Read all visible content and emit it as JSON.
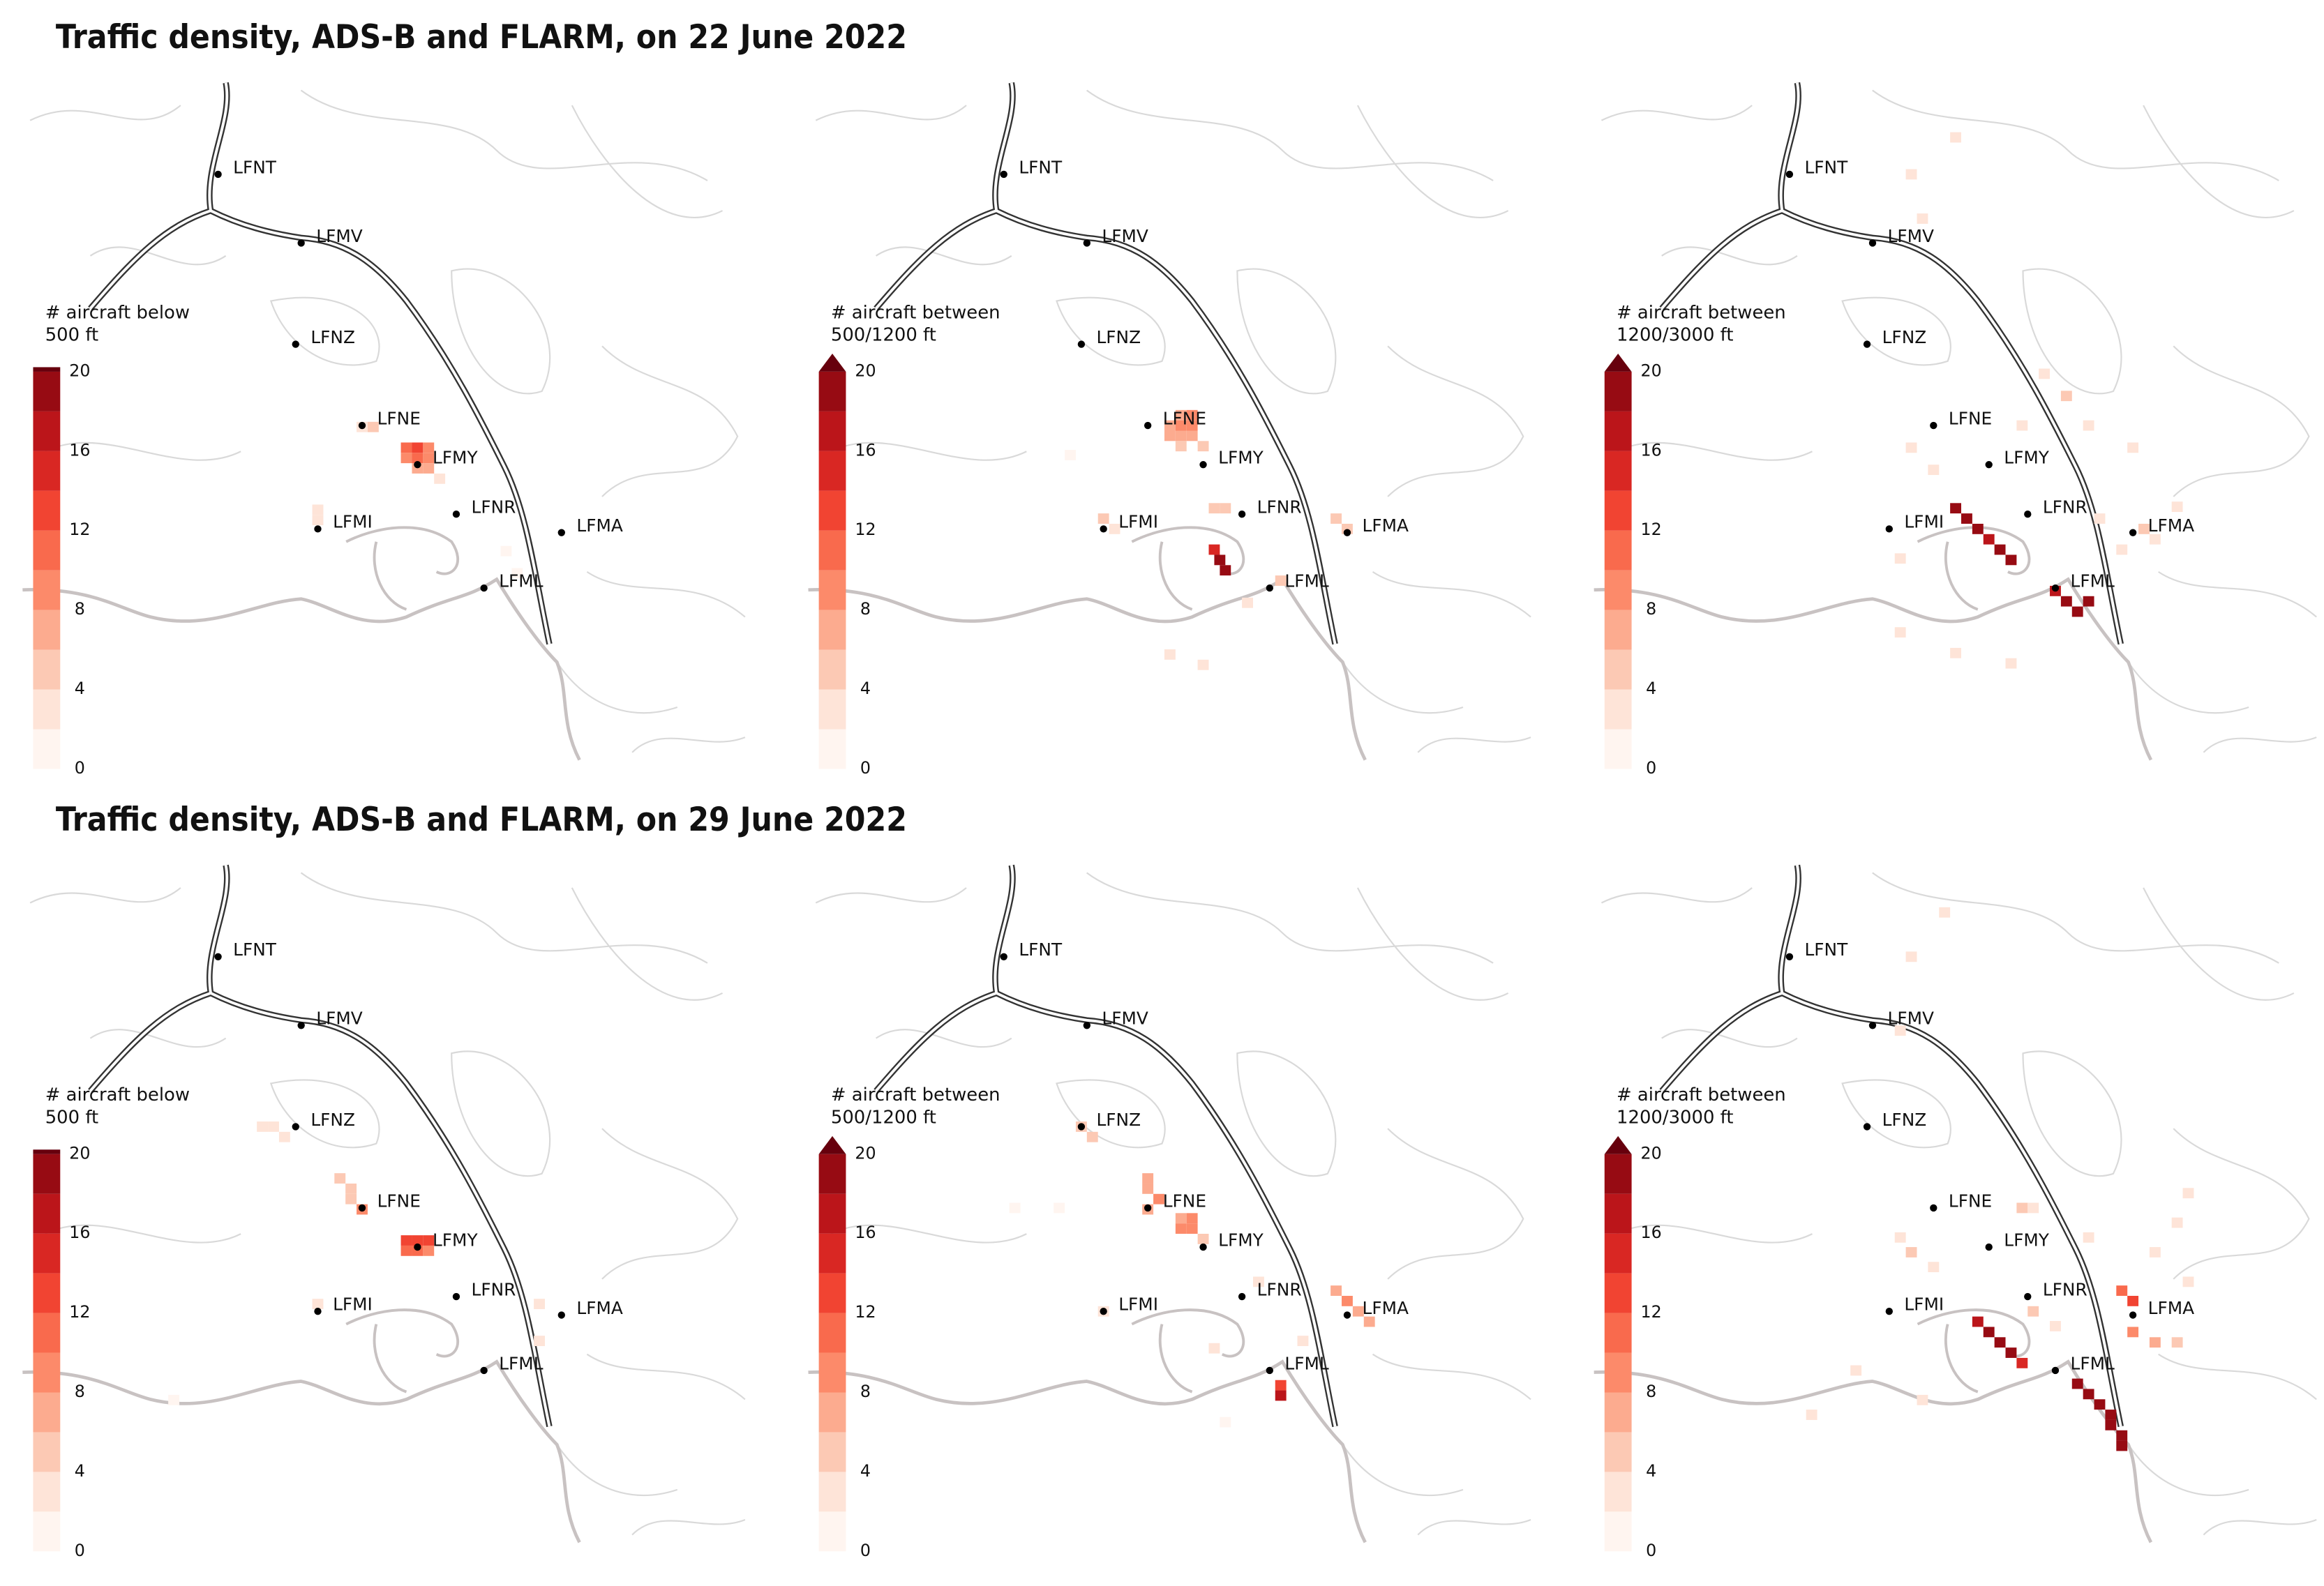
{
  "figure_titles": [
    "Traffic density, ADS-B and FLARM, on 22 June 2022",
    "Traffic density, ADS-B and FLARM, on 29 June 2022"
  ],
  "airports": [
    {
      "code": "LFNT",
      "lon": 4.75,
      "lat": 44.0
    },
    {
      "code": "LFMV",
      "lon": 4.9,
      "lat": 43.907
    },
    {
      "code": "LFNZ",
      "lon": 4.89,
      "lat": 43.77
    },
    {
      "code": "LFNE",
      "lon": 5.01,
      "lat": 43.66
    },
    {
      "code": "LFMY",
      "lon": 5.11,
      "lat": 43.607
    },
    {
      "code": "LFMI",
      "lon": 4.93,
      "lat": 43.52
    },
    {
      "code": "LFNR",
      "lon": 5.18,
      "lat": 43.54
    },
    {
      "code": "LFMA",
      "lon": 5.37,
      "lat": 43.515
    },
    {
      "code": "LFML",
      "lon": 5.23,
      "lat": 43.44
    }
  ],
  "chart_data": [
    {
      "type": "heatmap",
      "xlim": [
        4.397,
        5.715
      ],
      "ylim": [
        43.187,
        44.13
      ],
      "colorbar_label": [
        "# aircraft below",
        "500 ft"
      ],
      "clim": [
        0,
        20
      ],
      "cticks": [
        0,
        4,
        8,
        12,
        16,
        20
      ],
      "extend": "neither",
      "colors": [
        "#fff5f0",
        "#fee4d8",
        "#fcc9b4",
        "#fcab8f",
        "#fc8a6a",
        "#f96a4d",
        "#f14432",
        "#d92723",
        "#bb151a",
        "#970b13"
      ],
      "extend_color": "#67000d",
      "cells": [
        [
          5.09,
          43.63,
          10
        ],
        [
          5.11,
          43.63,
          12
        ],
        [
          5.13,
          43.63,
          8
        ],
        [
          5.09,
          43.616,
          8
        ],
        [
          5.11,
          43.616,
          11
        ],
        [
          5.13,
          43.616,
          9
        ],
        [
          5.11,
          43.602,
          7
        ],
        [
          5.13,
          43.602,
          6
        ],
        [
          5.03,
          43.658,
          4
        ],
        [
          5.01,
          43.658,
          3
        ],
        [
          5.15,
          43.588,
          3
        ],
        [
          4.93,
          43.532,
          2
        ],
        [
          4.93,
          43.546,
          2
        ],
        [
          5.29,
          43.46,
          1
        ],
        [
          5.27,
          43.49,
          1
        ]
      ]
    },
    {
      "type": "heatmap",
      "xlim": [
        4.397,
        5.715
      ],
      "ylim": [
        43.187,
        44.13
      ],
      "colorbar_label": [
        "# aircraft between",
        "500/1200 ft"
      ],
      "clim": [
        0,
        20
      ],
      "cticks": [
        0,
        4,
        8,
        12,
        16,
        20
      ],
      "extend": "max",
      "colors": [
        "#fff5f0",
        "#fee4d8",
        "#fcc9b4",
        "#fcab8f",
        "#fc8a6a",
        "#f96a4d",
        "#f14432",
        "#d92723",
        "#bb151a",
        "#970b13"
      ],
      "extend_color": "#67000d",
      "cells": [
        [
          5.07,
          43.674,
          7
        ],
        [
          5.09,
          43.674,
          8
        ],
        [
          5.05,
          43.66,
          7
        ],
        [
          5.07,
          43.66,
          9
        ],
        [
          5.09,
          43.66,
          8
        ],
        [
          5.05,
          43.646,
          6
        ],
        [
          5.07,
          43.646,
          7
        ],
        [
          5.09,
          43.646,
          6
        ],
        [
          5.07,
          43.632,
          5
        ],
        [
          5.11,
          43.632,
          4
        ],
        [
          5.13,
          43.548,
          4
        ],
        [
          5.15,
          43.548,
          4
        ],
        [
          5.13,
          43.492,
          14
        ],
        [
          5.14,
          43.478,
          20
        ],
        [
          5.15,
          43.464,
          20
        ],
        [
          5.35,
          43.534,
          5
        ],
        [
          5.37,
          43.52,
          4
        ],
        [
          4.93,
          43.534,
          4
        ],
        [
          4.95,
          43.52,
          3
        ],
        [
          5.25,
          43.45,
          4
        ],
        [
          5.05,
          43.35,
          2
        ],
        [
          5.11,
          43.336,
          2
        ],
        [
          5.19,
          43.42,
          2
        ],
        [
          4.87,
          43.62,
          1
        ]
      ]
    },
    {
      "type": "heatmap",
      "xlim": [
        4.397,
        5.715
      ],
      "ylim": [
        43.187,
        44.13
      ],
      "colorbar_label": [
        "# aircraft between",
        "1200/3000 ft"
      ],
      "clim": [
        0,
        20
      ],
      "cticks": [
        0,
        4,
        8,
        12,
        16,
        20
      ],
      "extend": "max",
      "colors": [
        "#fff5f0",
        "#fee4d8",
        "#fcc9b4",
        "#fcab8f",
        "#fc8a6a",
        "#f96a4d",
        "#f14432",
        "#d92723",
        "#bb151a",
        "#970b13"
      ],
      "extend_color": "#67000d",
      "cells": [
        [
          5.05,
          43.548,
          20
        ],
        [
          5.07,
          43.534,
          18
        ],
        [
          5.09,
          43.52,
          20
        ],
        [
          5.11,
          43.506,
          16
        ],
        [
          5.13,
          43.492,
          20
        ],
        [
          5.15,
          43.478,
          18
        ],
        [
          5.23,
          43.436,
          16
        ],
        [
          5.25,
          43.422,
          20
        ],
        [
          5.27,
          43.408,
          20
        ],
        [
          5.29,
          43.422,
          18
        ],
        [
          5.31,
          43.534,
          3
        ],
        [
          5.35,
          43.492,
          3
        ],
        [
          5.39,
          43.52,
          4
        ],
        [
          5.41,
          43.506,
          3
        ],
        [
          4.95,
          43.38,
          2
        ],
        [
          5.05,
          43.352,
          3
        ],
        [
          5.15,
          43.338,
          2
        ],
        [
          5.01,
          43.6,
          2
        ],
        [
          4.97,
          43.63,
          2
        ],
        [
          5.21,
          43.73,
          3
        ],
        [
          5.25,
          43.7,
          4
        ],
        [
          5.29,
          43.66,
          3
        ],
        [
          5.17,
          43.66,
          2
        ],
        [
          5.37,
          43.63,
          2
        ],
        [
          4.99,
          43.94,
          2
        ],
        [
          4.97,
          44.0,
          2
        ],
        [
          5.05,
          44.05,
          2
        ],
        [
          4.95,
          43.48,
          3
        ],
        [
          5.45,
          43.55,
          2
        ]
      ]
    },
    {
      "type": "heatmap",
      "xlim": [
        4.397,
        5.715
      ],
      "ylim": [
        43.187,
        44.13
      ],
      "colorbar_label": [
        "# aircraft below",
        "500 ft"
      ],
      "clim": [
        0,
        20
      ],
      "cticks": [
        0,
        4,
        8,
        12,
        16,
        20
      ],
      "extend": "neither",
      "colors": [
        "#fff5f0",
        "#fee4d8",
        "#fcc9b4",
        "#fcab8f",
        "#fc8a6a",
        "#f96a4d",
        "#f14432",
        "#d92723",
        "#bb151a",
        "#970b13"
      ],
      "extend_color": "#67000d",
      "cells": [
        [
          5.09,
          43.616,
          13
        ],
        [
          5.11,
          43.616,
          13
        ],
        [
          5.13,
          43.616,
          12
        ],
        [
          5.09,
          43.602,
          10
        ],
        [
          5.11,
          43.602,
          11
        ],
        [
          5.13,
          43.602,
          9
        ],
        [
          5.01,
          43.658,
          8
        ],
        [
          4.99,
          43.672,
          5
        ],
        [
          4.83,
          43.77,
          3
        ],
        [
          4.85,
          43.77,
          3
        ],
        [
          4.87,
          43.756,
          2
        ],
        [
          4.97,
          43.7,
          4
        ],
        [
          4.99,
          43.686,
          5
        ],
        [
          5.33,
          43.53,
          2
        ],
        [
          5.33,
          43.48,
          2
        ],
        [
          4.93,
          43.53,
          2
        ],
        [
          4.67,
          43.4,
          1
        ]
      ]
    },
    {
      "type": "heatmap",
      "xlim": [
        4.397,
        5.715
      ],
      "ylim": [
        43.187,
        44.13
      ],
      "colorbar_label": [
        "# aircraft between",
        "500/1200 ft"
      ],
      "clim": [
        0,
        20
      ],
      "cticks": [
        0,
        4,
        8,
        12,
        16,
        20
      ],
      "extend": "max",
      "colors": [
        "#fff5f0",
        "#fee4d8",
        "#fcc9b4",
        "#fcab8f",
        "#fc8a6a",
        "#f96a4d",
        "#f14432",
        "#d92723",
        "#bb151a",
        "#970b13"
      ],
      "extend_color": "#67000d",
      "cells": [
        [
          4.89,
          43.77,
          5
        ],
        [
          4.91,
          43.756,
          4
        ],
        [
          5.01,
          43.7,
          6
        ],
        [
          5.01,
          43.686,
          7
        ],
        [
          5.03,
          43.672,
          8
        ],
        [
          5.01,
          43.658,
          6
        ],
        [
          5.07,
          43.646,
          7
        ],
        [
          5.09,
          43.646,
          9
        ],
        [
          5.07,
          43.632,
          8
        ],
        [
          5.09,
          43.632,
          8
        ],
        [
          5.11,
          43.618,
          5
        ],
        [
          5.35,
          43.548,
          7
        ],
        [
          5.37,
          43.534,
          9
        ],
        [
          5.39,
          43.52,
          7
        ],
        [
          5.41,
          43.506,
          6
        ],
        [
          5.25,
          43.42,
          12
        ],
        [
          5.25,
          43.406,
          16
        ],
        [
          4.93,
          43.52,
          3
        ],
        [
          5.21,
          43.56,
          2
        ],
        [
          4.77,
          43.66,
          1
        ],
        [
          4.85,
          43.66,
          1
        ],
        [
          5.13,
          43.47,
          2
        ],
        [
          5.15,
          43.37,
          1
        ],
        [
          5.29,
          43.48,
          2
        ]
      ]
    },
    {
      "type": "heatmap",
      "xlim": [
        4.397,
        5.715
      ],
      "ylim": [
        43.187,
        44.13
      ],
      "colorbar_label": [
        "# aircraft between",
        "1200/3000 ft"
      ],
      "clim": [
        0,
        20
      ],
      "cticks": [
        0,
        4,
        8,
        12,
        16,
        20
      ],
      "extend": "max",
      "colors": [
        "#fff5f0",
        "#fee4d8",
        "#fcc9b4",
        "#fcab8f",
        "#fc8a6a",
        "#f96a4d",
        "#f14432",
        "#d92723",
        "#bb151a",
        "#970b13"
      ],
      "extend_color": "#67000d",
      "cells": [
        [
          5.09,
          43.506,
          16
        ],
        [
          5.11,
          43.492,
          20
        ],
        [
          5.13,
          43.478,
          20
        ],
        [
          5.15,
          43.464,
          18
        ],
        [
          5.17,
          43.45,
          14
        ],
        [
          5.27,
          43.422,
          18
        ],
        [
          5.29,
          43.408,
          20
        ],
        [
          5.31,
          43.394,
          20
        ],
        [
          5.33,
          43.38,
          20
        ],
        [
          5.33,
          43.366,
          18
        ],
        [
          5.35,
          43.352,
          20
        ],
        [
          5.35,
          43.338,
          20
        ],
        [
          5.35,
          43.548,
          10
        ],
        [
          5.37,
          43.534,
          12
        ],
        [
          5.37,
          43.492,
          8
        ],
        [
          5.41,
          43.478,
          6
        ],
        [
          5.45,
          43.478,
          4
        ],
        [
          4.95,
          43.62,
          3
        ],
        [
          4.97,
          43.6,
          4
        ],
        [
          5.01,
          43.58,
          3
        ],
        [
          5.17,
          43.66,
          4
        ],
        [
          5.19,
          43.66,
          3
        ],
        [
          5.29,
          43.62,
          3
        ],
        [
          5.41,
          43.6,
          3
        ],
        [
          5.45,
          43.64,
          2
        ],
        [
          5.47,
          43.68,
          2
        ],
        [
          4.95,
          43.9,
          2
        ],
        [
          4.97,
          44.0,
          2
        ],
        [
          5.03,
          44.06,
          2
        ],
        [
          4.87,
          43.44,
          3
        ],
        [
          4.99,
          43.4,
          3
        ],
        [
          5.19,
          43.52,
          4
        ],
        [
          5.23,
          43.5,
          3
        ],
        [
          5.47,
          43.56,
          3
        ],
        [
          4.79,
          43.38,
          2
        ]
      ]
    }
  ]
}
